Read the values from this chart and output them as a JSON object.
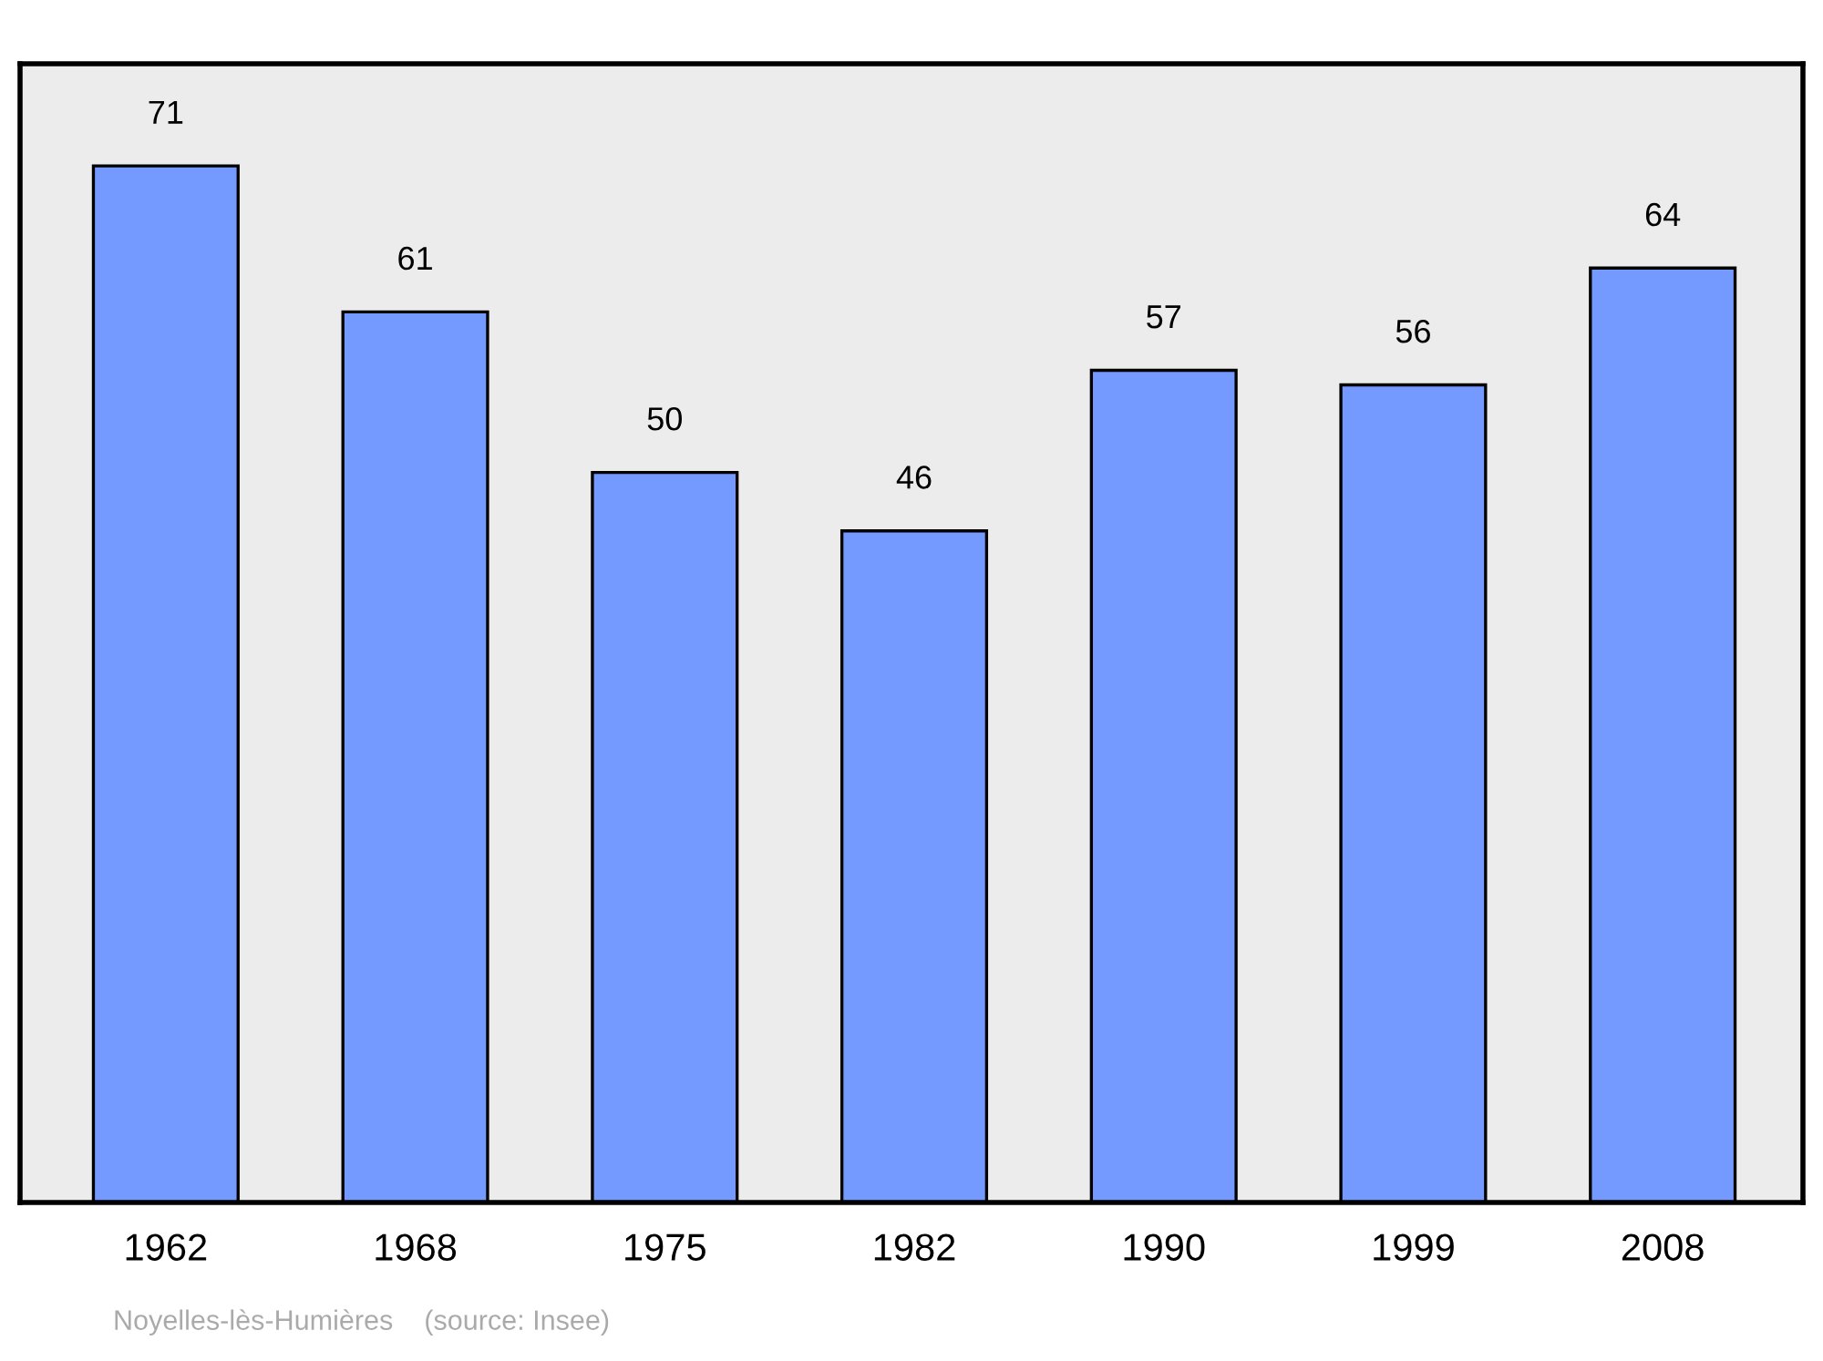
{
  "chart_data": {
    "type": "bar",
    "categories": [
      "1962",
      "1968",
      "1975",
      "1982",
      "1990",
      "1999",
      "2008"
    ],
    "values": [
      71,
      61,
      50,
      46,
      57,
      56,
      64
    ],
    "color": "#7499ff",
    "ylim": [
      0,
      78
    ],
    "tick_labels": "x",
    "data_labels": true,
    "grid": false,
    "legend": false,
    "annotations": [
      "Noyelles-lès-Humières    (source: Insee)"
    ]
  }
}
